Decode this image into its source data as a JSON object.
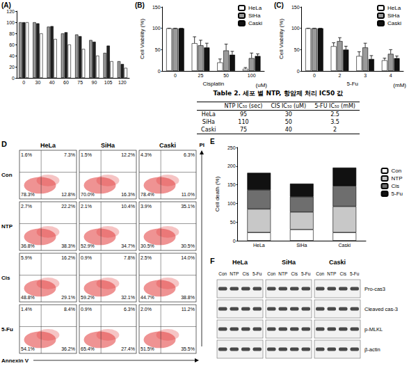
{
  "chart_data": [
    {
      "type": "bar",
      "title": "(A)",
      "categories": [
        "0",
        "30",
        "40",
        "60",
        "75",
        "90",
        "105",
        "120"
      ],
      "series": [
        {
          "color": "#9a9a9a",
          "values": [
            100,
            100,
            92,
            80,
            78,
            68,
            45,
            30
          ]
        },
        {
          "color": "#222222",
          "values": [
            100,
            98,
            93,
            82,
            75,
            65,
            58,
            25
          ]
        },
        {
          "color": "#ffffff",
          "values": [
            100,
            80,
            70,
            60,
            52,
            40,
            30,
            18
          ]
        }
      ],
      "ylim": [
        0,
        120
      ],
      "yticks": [
        0,
        20,
        40,
        60,
        80,
        100,
        120
      ]
    },
    {
      "type": "bar",
      "title": "(B)",
      "ylabel": "Cell Viability (%)",
      "xlabel": "Cisplatin",
      "x_unit": "(uM)",
      "categories": [
        "0",
        "25",
        "50",
        "100"
      ],
      "series": [
        {
          "name": "HeLa",
          "color": "#ffffff",
          "values": [
            100,
            65,
            20,
            5
          ],
          "errors": [
            0,
            15,
            8,
            3
          ]
        },
        {
          "name": "SiHa",
          "color": "#9a9a9a",
          "values": [
            100,
            60,
            48,
            30
          ],
          "errors": [
            0,
            12,
            15,
            12
          ]
        },
        {
          "name": "Caski",
          "color": "#111111",
          "values": [
            100,
            55,
            38,
            35
          ],
          "errors": [
            0,
            10,
            8,
            5
          ]
        }
      ],
      "ylim": [
        0,
        150
      ],
      "yticks": [
        0,
        50,
        100,
        150
      ],
      "legend": "upper right"
    },
    {
      "type": "bar",
      "title": "(C)",
      "ylabel": "Cell Viability (%)",
      "xlabel": "5-Fu",
      "x_unit": "(mM)",
      "categories": [
        "0",
        "2",
        "3",
        "4"
      ],
      "series": [
        {
          "name": "HeLa",
          "color": "#ffffff",
          "values": [
            100,
            58,
            35,
            25
          ],
          "errors": [
            0,
            8,
            10,
            5
          ]
        },
        {
          "name": "SiHa",
          "color": "#9a9a9a",
          "values": [
            100,
            70,
            55,
            40
          ],
          "errors": [
            0,
            8,
            10,
            10
          ]
        },
        {
          "name": "Caski",
          "color": "#111111",
          "values": [
            100,
            50,
            28,
            30
          ],
          "errors": [
            0,
            8,
            8,
            5
          ]
        }
      ],
      "ylim": [
        0,
        150
      ],
      "yticks": [
        0,
        50,
        100,
        150
      ],
      "legend": "upper right"
    },
    {
      "type": "bar",
      "title": "E",
      "ylabel": "Cell death (%)",
      "stacked": true,
      "categories": [
        "HeLa",
        "SiHa",
        "Caski"
      ],
      "series": [
        {
          "name": "Con",
          "color": "#ffffff",
          "values": [
            22,
            30,
            22
          ]
        },
        {
          "name": "NTP",
          "color": "#c8c8c8",
          "values": [
            63,
            47,
            70
          ]
        },
        {
          "name": "Cis",
          "color": "#6e6e6e",
          "values": [
            51,
            41,
            55
          ]
        },
        {
          "name": "5-Fu",
          "color": "#111111",
          "values": [
            46,
            35,
            49
          ]
        }
      ],
      "ylim": [
        0,
        250
      ],
      "yticks": [
        0,
        50,
        100,
        150,
        200,
        250
      ],
      "legend": "right"
    }
  ],
  "table": {
    "title": "Table 2. 세포 별 NTP, 항암제 처리 IC50 값",
    "header": [
      "",
      "NTP IC₅₀ (sec)",
      "CIS IC₅₀ (uM)",
      "5-FU IC₅₀ (mM)"
    ],
    "rows": [
      [
        "HeLa",
        95,
        30,
        2.5
      ],
      [
        "SiHa",
        110,
        50,
        3.5
      ],
      [
        "Caski",
        75,
        40,
        2
      ]
    ]
  },
  "flow_panel": {
    "label": "D",
    "x_label": "Annexin V",
    "y_label": "PI",
    "columns": [
      "HeLa",
      "SiHa",
      "Caski"
    ],
    "rows": [
      "Con",
      "NTP",
      "Cis",
      "5-Fu"
    ],
    "quadrants": [
      [
        [
          "1.6%",
          "7.3%",
          "78.3%",
          "12.8%"
        ],
        [
          "1.5%",
          "12.2%",
          "70.0%",
          "16.3%"
        ],
        [
          "4.3%",
          "6.3%",
          "78.4%",
          "11.0%"
        ]
      ],
      [
        [
          "2.7%",
          "22.2%",
          "36.8%",
          "38.3%"
        ],
        [
          "2.1%",
          "10.4%",
          "52.9%",
          "34.7%"
        ],
        [
          "3.9%",
          "35.1%",
          "30.5%",
          "30.5%"
        ]
      ],
      [
        [
          "5.9%",
          "16.2%",
          "48.8%",
          "29.1%"
        ],
        [
          "0.9%",
          "7.8%",
          "59.2%",
          "32.1%"
        ],
        [
          "2.5%",
          "14.0%",
          "44.7%",
          "38.8%"
        ]
      ],
      [
        [
          "1.4%",
          "8.4%",
          "54.1%",
          "36.2%"
        ],
        [
          "0.9%",
          "6.3%",
          "65.4%",
          "27.4%"
        ],
        [
          "2.0%",
          "11.2%",
          "51.5%",
          "35.5%"
        ]
      ]
    ]
  },
  "blot_panel": {
    "label": "F",
    "groups": [
      "HeLa",
      "SiHa",
      "Caski"
    ],
    "lanes": [
      "Con",
      "NTP",
      "Cis",
      "5-Fu"
    ],
    "bands": [
      "Pro-cas3",
      "Cleaved cas-3",
      "p-MLKL",
      "β-actin"
    ]
  }
}
